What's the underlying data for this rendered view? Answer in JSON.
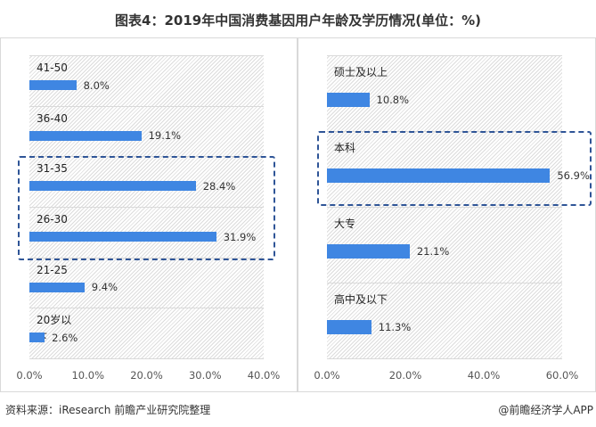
{
  "title": "图表4：2019年中国消费基因用户年龄及学历情况(单位：%)",
  "chart_data": [
    {
      "type": "bar",
      "orientation": "horizontal",
      "categories": [
        "41-50岁",
        "36-40岁",
        "31-35岁",
        "26-30岁",
        "21-25岁",
        "20岁以下"
      ],
      "values": [
        8.0,
        19.1,
        28.4,
        31.9,
        9.4,
        2.6
      ],
      "value_labels": [
        "8.0%",
        "19.1%",
        "28.4%",
        "31.9%",
        "9.4%",
        "2.6%"
      ],
      "xlim": [
        0,
        40
      ],
      "ticks": [
        "0.0%",
        "10.0%",
        "20.0%",
        "30.0%",
        "40.0%"
      ],
      "highlighted": [
        "31-35岁",
        "26-30岁"
      ],
      "color": "#3f86e2"
    },
    {
      "type": "bar",
      "orientation": "horizontal",
      "categories": [
        "硕士及以上",
        "本科",
        "大专",
        "高中及以下"
      ],
      "values": [
        10.8,
        56.9,
        21.1,
        11.3
      ],
      "value_labels": [
        "10.8%",
        "56.9%",
        "21.1%",
        "11.3%"
      ],
      "xlim": [
        0,
        60
      ],
      "ticks": [
        "0.0%",
        "20.0%",
        "40.0%",
        "60.0%"
      ],
      "highlighted": [
        "本科"
      ],
      "color": "#3f86e2"
    }
  ],
  "footer": {
    "source": "资料来源：iResearch 前瞻产业研究院整理",
    "credit": "@前瞻经济学人APP"
  },
  "highlight_color": "#2f5597"
}
